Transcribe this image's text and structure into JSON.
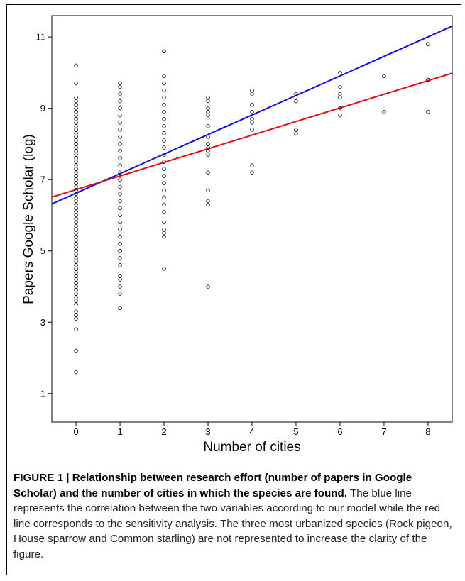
{
  "chart_data": {
    "type": "scatter",
    "xlabel": "Number of cities",
    "ylabel": "Papers Google Scholar (log)",
    "xlim": [
      -0.55,
      8.55
    ],
    "ylim": [
      0.2,
      11.6
    ],
    "x_ticks": [
      0,
      1,
      2,
      3,
      4,
      5,
      6,
      7,
      8
    ],
    "y_ticks": [
      1,
      3,
      5,
      7,
      9,
      11
    ],
    "grid": false,
    "lines": [
      {
        "color": "#1010e0",
        "intercept": 6.62,
        "slope": 0.548
      },
      {
        "color": "#e01010",
        "intercept": 6.72,
        "slope": 0.382
      }
    ],
    "points": [
      [
        0,
        1.6
      ],
      [
        0,
        2.2
      ],
      [
        0,
        2.8
      ],
      [
        0,
        3.1
      ],
      [
        0,
        3.2
      ],
      [
        0,
        3.3
      ],
      [
        0,
        3.5
      ],
      [
        0,
        3.6
      ],
      [
        0,
        3.7
      ],
      [
        0,
        3.8
      ],
      [
        0,
        3.9
      ],
      [
        0,
        4.0
      ],
      [
        0,
        4.1
      ],
      [
        0,
        4.2
      ],
      [
        0,
        4.3
      ],
      [
        0,
        4.4
      ],
      [
        0,
        4.5
      ],
      [
        0,
        4.6
      ],
      [
        0,
        4.7
      ],
      [
        0,
        4.8
      ],
      [
        0,
        4.9
      ],
      [
        0,
        5.0
      ],
      [
        0,
        5.1
      ],
      [
        0,
        5.2
      ],
      [
        0,
        5.3
      ],
      [
        0,
        5.4
      ],
      [
        0,
        5.5
      ],
      [
        0,
        5.6
      ],
      [
        0,
        5.7
      ],
      [
        0,
        5.8
      ],
      [
        0,
        5.9
      ],
      [
        0,
        6.0
      ],
      [
        0,
        6.1
      ],
      [
        0,
        6.2
      ],
      [
        0,
        6.3
      ],
      [
        0,
        6.4
      ],
      [
        0,
        6.5
      ],
      [
        0,
        6.6
      ],
      [
        0,
        6.7
      ],
      [
        0,
        6.8
      ],
      [
        0,
        6.9
      ],
      [
        0,
        7.0
      ],
      [
        0,
        7.1
      ],
      [
        0,
        7.2
      ],
      [
        0,
        7.3
      ],
      [
        0,
        7.4
      ],
      [
        0,
        7.5
      ],
      [
        0,
        7.6
      ],
      [
        0,
        7.7
      ],
      [
        0,
        7.8
      ],
      [
        0,
        7.9
      ],
      [
        0,
        8.0
      ],
      [
        0,
        8.1
      ],
      [
        0,
        8.2
      ],
      [
        0,
        8.3
      ],
      [
        0,
        8.4
      ],
      [
        0,
        8.5
      ],
      [
        0,
        8.6
      ],
      [
        0,
        8.7
      ],
      [
        0,
        8.8
      ],
      [
        0,
        8.9
      ],
      [
        0,
        9.0
      ],
      [
        0,
        9.1
      ],
      [
        0,
        9.2
      ],
      [
        0,
        9.3
      ],
      [
        0,
        9.7
      ],
      [
        0,
        10.2
      ],
      [
        1,
        3.4
      ],
      [
        1,
        3.8
      ],
      [
        1,
        4.0
      ],
      [
        1,
        4.2
      ],
      [
        1,
        4.3
      ],
      [
        1,
        4.6
      ],
      [
        1,
        4.8
      ],
      [
        1,
        5.0
      ],
      [
        1,
        5.2
      ],
      [
        1,
        5.4
      ],
      [
        1,
        5.6
      ],
      [
        1,
        5.8
      ],
      [
        1,
        6.0
      ],
      [
        1,
        6.2
      ],
      [
        1,
        6.4
      ],
      [
        1,
        6.6
      ],
      [
        1,
        6.8
      ],
      [
        1,
        7.0
      ],
      [
        1,
        7.2
      ],
      [
        1,
        7.4
      ],
      [
        1,
        7.6
      ],
      [
        1,
        7.8
      ],
      [
        1,
        8.0
      ],
      [
        1,
        8.2
      ],
      [
        1,
        8.4
      ],
      [
        1,
        8.6
      ],
      [
        1,
        8.8
      ],
      [
        1,
        9.0
      ],
      [
        1,
        9.2
      ],
      [
        1,
        9.4
      ],
      [
        1,
        9.6
      ],
      [
        1,
        9.7
      ],
      [
        2,
        4.5
      ],
      [
        2,
        5.4
      ],
      [
        2,
        5.5
      ],
      [
        2,
        5.6
      ],
      [
        2,
        5.8
      ],
      [
        2,
        6.1
      ],
      [
        2,
        6.3
      ],
      [
        2,
        6.5
      ],
      [
        2,
        6.7
      ],
      [
        2,
        6.9
      ],
      [
        2,
        7.1
      ],
      [
        2,
        7.3
      ],
      [
        2,
        7.5
      ],
      [
        2,
        7.7
      ],
      [
        2,
        7.9
      ],
      [
        2,
        8.1
      ],
      [
        2,
        8.3
      ],
      [
        2,
        8.5
      ],
      [
        2,
        8.7
      ],
      [
        2,
        8.9
      ],
      [
        2,
        9.1
      ],
      [
        2,
        9.3
      ],
      [
        2,
        9.5
      ],
      [
        2,
        9.7
      ],
      [
        2,
        9.9
      ],
      [
        2,
        10.6
      ],
      [
        3,
        4.0
      ],
      [
        3,
        6.3
      ],
      [
        3,
        6.4
      ],
      [
        3,
        6.7
      ],
      [
        3,
        7.2
      ],
      [
        3,
        7.7
      ],
      [
        3,
        7.8
      ],
      [
        3,
        7.9
      ],
      [
        3,
        8.0
      ],
      [
        3,
        8.2
      ],
      [
        3,
        8.5
      ],
      [
        3,
        8.8
      ],
      [
        3,
        8.9
      ],
      [
        3,
        9.0
      ],
      [
        3,
        9.2
      ],
      [
        3,
        9.3
      ],
      [
        4,
        7.2
      ],
      [
        4,
        7.4
      ],
      [
        4,
        8.4
      ],
      [
        4,
        8.6
      ],
      [
        4,
        8.7
      ],
      [
        4,
        8.9
      ],
      [
        4,
        9.1
      ],
      [
        4,
        9.4
      ],
      [
        4,
        9.5
      ],
      [
        5,
        8.3
      ],
      [
        5,
        8.4
      ],
      [
        5,
        9.2
      ],
      [
        5,
        9.4
      ],
      [
        6,
        8.8
      ],
      [
        6,
        9.0
      ],
      [
        6,
        9.3
      ],
      [
        6,
        9.4
      ],
      [
        6,
        9.6
      ],
      [
        6,
        10.0
      ],
      [
        7,
        8.9
      ],
      [
        7,
        9.9
      ],
      [
        8,
        8.9
      ],
      [
        8,
        9.8
      ],
      [
        8,
        10.8
      ]
    ]
  },
  "caption": {
    "bold": "FIGURE 1 | Relationship between research effort (number of papers in Google Scholar) and the number of cities in which the species are found.",
    "text": " The blue line represents the correlation between the two variables according to our model while the red line corresponds to the sensitivity analysis. The three most urbanized species (Rock pigeon, House sparrow and Common starling) are not represented to increase the clarity of the figure."
  }
}
